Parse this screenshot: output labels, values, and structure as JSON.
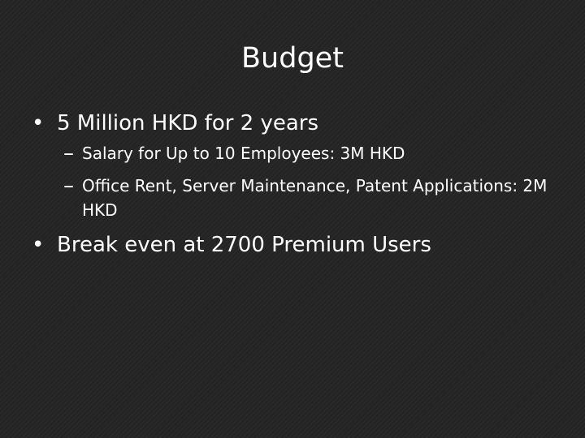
{
  "slide": {
    "title": "Budget",
    "bullets": [
      {
        "text": "5 Million HKD for 2 years",
        "sub": [
          "Salary for Up to 10 Employees: 3M HKD",
          "Office Rent, Server Maintenance, Patent Applications: 2M HKD"
        ]
      },
      {
        "text": "Break even at 2700 Premium Users"
      }
    ],
    "bullet_marker": "•",
    "sub_marker": "–"
  }
}
